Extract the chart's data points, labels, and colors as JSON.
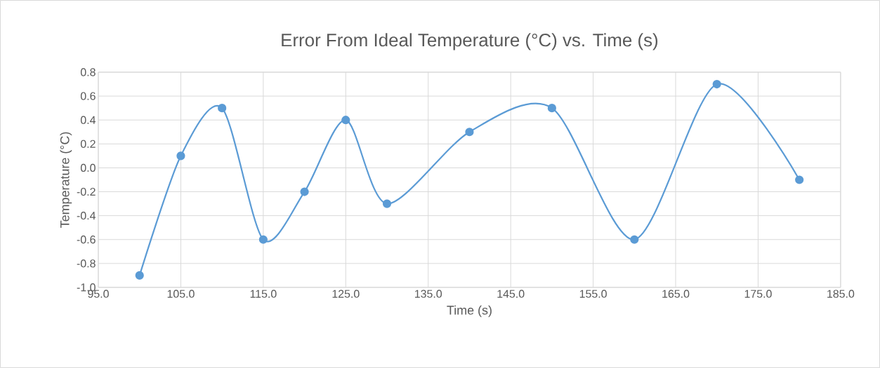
{
  "chart_data": {
    "type": "line",
    "title": "Error From Ideal Temperature (°C) vs. Time (s)",
    "xlabel": "Time (s)",
    "ylabel": "Temperature (°C)",
    "x": [
      100,
      105,
      110,
      115,
      120,
      125,
      130,
      140,
      150,
      160,
      170,
      180
    ],
    "values": [
      -0.9,
      0.1,
      0.5,
      -0.6,
      -0.2,
      0.4,
      -0.3,
      0.3,
      0.5,
      -0.6,
      0.7,
      -0.1
    ],
    "color": "#5b9bd5",
    "marker": "circle",
    "grid": true,
    "xlim": [
      95,
      185
    ],
    "xticks": [
      {
        "value": 95,
        "label": "95.0"
      },
      {
        "value": 105,
        "label": "105.0"
      },
      {
        "value": 115,
        "label": "115.0"
      },
      {
        "value": 125,
        "label": "125.0"
      },
      {
        "value": 135,
        "label": "135.0"
      },
      {
        "value": 145,
        "label": "145.0"
      },
      {
        "value": 155,
        "label": "155.0"
      },
      {
        "value": 165,
        "label": "165.0"
      },
      {
        "value": 175,
        "label": "175.0"
      },
      {
        "value": 185,
        "label": "185.0"
      }
    ],
    "ylim": [
      -1.0,
      0.8
    ],
    "yticks": [
      {
        "value": -1.0,
        "label": "-1.0"
      },
      {
        "value": -0.8,
        "label": "-0.8"
      },
      {
        "value": -0.6,
        "label": "-0.6"
      },
      {
        "value": -0.4,
        "label": "-0.4"
      },
      {
        "value": -0.2,
        "label": "-0.2"
      },
      {
        "value": 0.0,
        "label": "0.0"
      },
      0.2,
      0.4,
      0.6,
      0.8
    ]
  }
}
